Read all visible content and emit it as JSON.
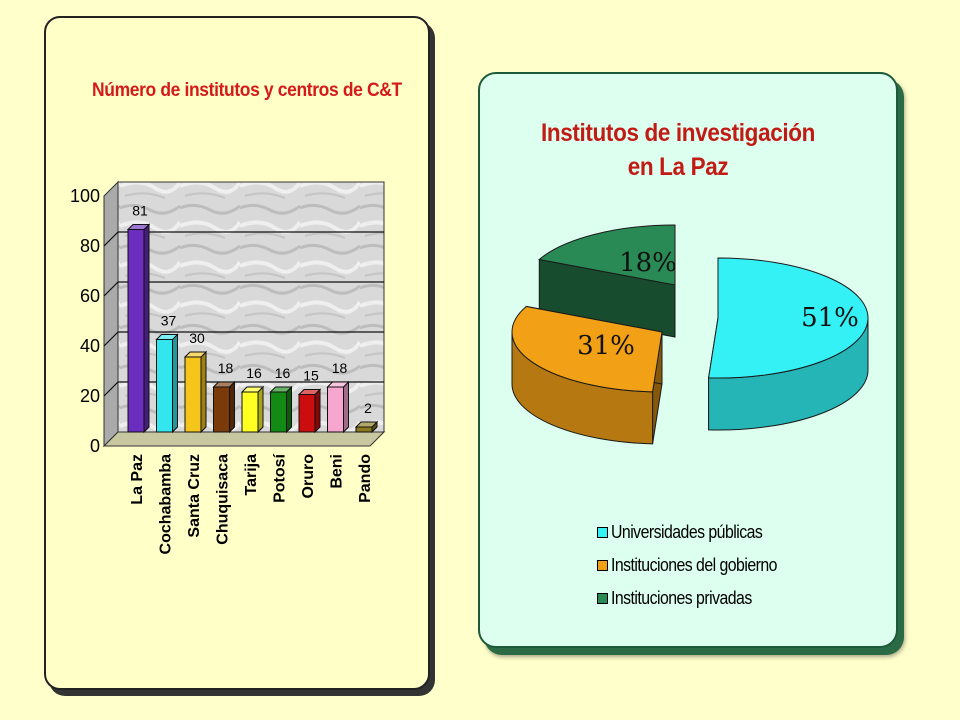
{
  "colors": {
    "background": "#ffffcc",
    "bar_title": "#d41a1a",
    "pie_title": "#c21a14"
  },
  "chart_data": [
    {
      "type": "bar",
      "title": "Número de institutos y centros de C&T",
      "categories": [
        "La Paz",
        "Cochabamba",
        "Santa Cruz",
        "Chuquisaca",
        "Tarija",
        "Potosí",
        "Oruro",
        "Beni",
        "Pando"
      ],
      "values": [
        81,
        37,
        30,
        18,
        16,
        16,
        15,
        18,
        2
      ],
      "data_labels": [
        "81",
        "37",
        "30",
        "18",
        "16",
        "16",
        "15",
        "18",
        "2"
      ],
      "colors": [
        "#6a2dbd",
        "#33e6ee",
        "#f6c51c",
        "#7a3a0a",
        "#ffff22",
        "#138a13",
        "#cc0d0d",
        "#f7a6cf",
        "#8c7a1a"
      ],
      "yticks": [
        "0",
        "20",
        "40",
        "60",
        "80",
        "100"
      ],
      "ylim": [
        0,
        100
      ],
      "grid": true,
      "style": "3d"
    },
    {
      "type": "pie",
      "title": "Institutos de investigación en La Paz",
      "title_lines": [
        "Institutos de investigación",
        "en La Paz"
      ],
      "slices": [
        {
          "label": "Universidades públicas",
          "value": 51,
          "text": "51%",
          "color": "#33f1f4"
        },
        {
          "label": "Instituciones del gobierno",
          "value": 31,
          "text": "31%",
          "color": "#f2a015"
        },
        {
          "label": "Instituciones privadas",
          "value": 18,
          "text": "18%",
          "color": "#2a8a56"
        }
      ],
      "legend_position": "bottom",
      "style": "3d-exploded"
    }
  ]
}
